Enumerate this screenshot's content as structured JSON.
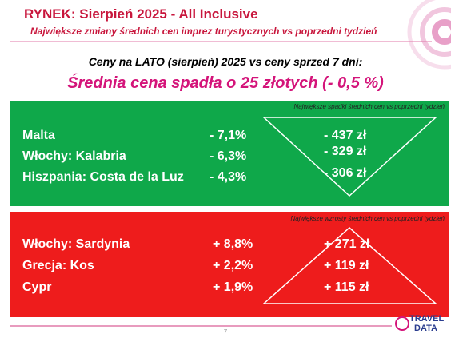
{
  "header": {
    "title": "RYNEK: Sierpień 2025 - All Inclusive",
    "subtitle": "Największe zmiany średnich cen imprez turystycznych vs poprzedni tydzień"
  },
  "summary": {
    "intro": "Ceny na LATO (sierpień) 2025 vs ceny sprzed 7 dni:",
    "headline": "Średnia cena spadła o 25 złotych (- 0,5 %)"
  },
  "decreases": {
    "caption": "Największe spadki średnich cen vs poprzedni tydzień",
    "rows": [
      [
        "Malta",
        "- 7,1%",
        "- 437 zł"
      ],
      [
        "Włochy: Kalabria",
        "- 6,3%",
        "- 329 zł"
      ],
      [
        "Hiszpania: Costa de la Luz",
        "- 4,3%",
        "- 306 zł"
      ]
    ]
  },
  "increases": {
    "caption": "Największe wzrosty średnich cen vs poprzedni tydzień",
    "rows": [
      [
        "Włochy: Sardynia",
        "+ 8,8%",
        "+ 271 zł"
      ],
      [
        "Grecja: Kos",
        "+ 2,2%",
        "+ 119 zł"
      ],
      [
        "Cypr",
        "+ 1,9%",
        "+ 115 zł"
      ]
    ]
  },
  "footer": {
    "page": "7",
    "logo": [
      "TRAVEL",
      "DATA"
    ]
  }
}
